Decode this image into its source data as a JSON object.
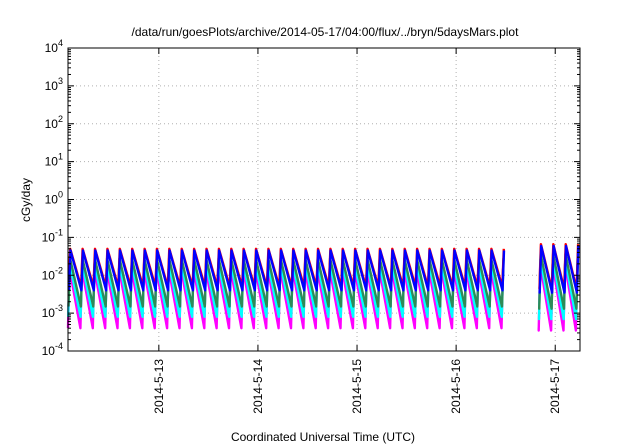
{
  "chart_data": {
    "type": "line",
    "title": "/data/run/goesPlots/archive/2014-05-17/04:00/flux/../bryn/5daysMars.plot",
    "xlabel": "Coordinated Universal Time (UTC)",
    "ylabel": "cGy/day",
    "y_scale": "log",
    "ylim": [
      0.0001,
      10000
    ],
    "xlim": [
      "2014-05-12T02:00",
      "2014-05-17T06:00"
    ],
    "y_ticks": [
      {
        "mantissa": "10",
        "exp": "-4"
      },
      {
        "mantissa": "10",
        "exp": "-3"
      },
      {
        "mantissa": "10",
        "exp": "-2"
      },
      {
        "mantissa": "10",
        "exp": "-1"
      },
      {
        "mantissa": "10",
        "exp": "0"
      },
      {
        "mantissa": "10",
        "exp": "1"
      },
      {
        "mantissa": "10",
        "exp": "2"
      },
      {
        "mantissa": "10",
        "exp": "3"
      },
      {
        "mantissa": "10",
        "exp": "4"
      }
    ],
    "x_ticks": [
      "2014-5-13",
      "2014-5-14",
      "2014-5-15",
      "2014-5-16",
      "2014-5-17"
    ],
    "grid": true,
    "legend": "none",
    "series": [
      {
        "color": "#ff00ff",
        "peak": 0.015,
        "trough": 0.0004
      },
      {
        "color": "#00ffff",
        "peak": 0.02,
        "trough": 0.0008
      },
      {
        "color": "#2e8b57",
        "peak": 0.028,
        "trough": 0.0015
      },
      {
        "color": "#ff0000",
        "peak": 0.05,
        "trough": 0.005
      },
      {
        "color": "#0000ff",
        "peak": 0.045,
        "trough": 0.004
      }
    ],
    "cycle_hours": 3,
    "data_gap": [
      "2014-05-16T12:00",
      "2014-05-16T18:00"
    ]
  }
}
